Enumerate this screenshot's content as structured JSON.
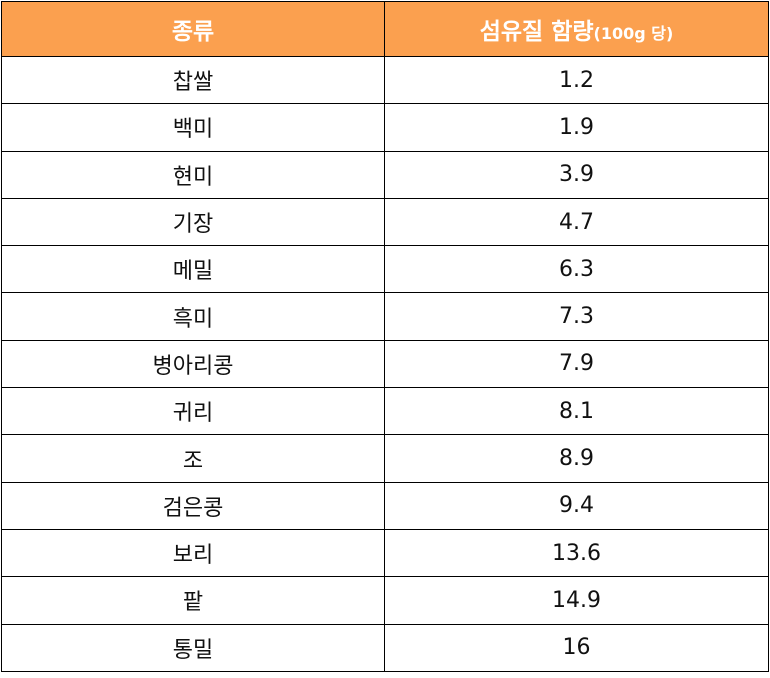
{
  "table": {
    "header": {
      "col1": "종류",
      "col2_main": "섬유질 함량",
      "col2_unit": "(100g 당)"
    },
    "header_color": "#FBA04F",
    "rows": [
      {
        "name": "찹쌀",
        "value": "1.2"
      },
      {
        "name": "백미",
        "value": "1.9"
      },
      {
        "name": "현미",
        "value": "3.9"
      },
      {
        "name": "기장",
        "value": "4.7"
      },
      {
        "name": "메밀",
        "value": "6.3"
      },
      {
        "name": "흑미",
        "value": "7.3"
      },
      {
        "name": "병아리콩",
        "value": "7.9"
      },
      {
        "name": "귀리",
        "value": "8.1"
      },
      {
        "name": "조",
        "value": "8.9"
      },
      {
        "name": "검은콩",
        "value": "9.4"
      },
      {
        "name": "보리",
        "value": "13.6"
      },
      {
        "name": "팥",
        "value": "14.9"
      },
      {
        "name": "통밀",
        "value": "16"
      }
    ]
  }
}
